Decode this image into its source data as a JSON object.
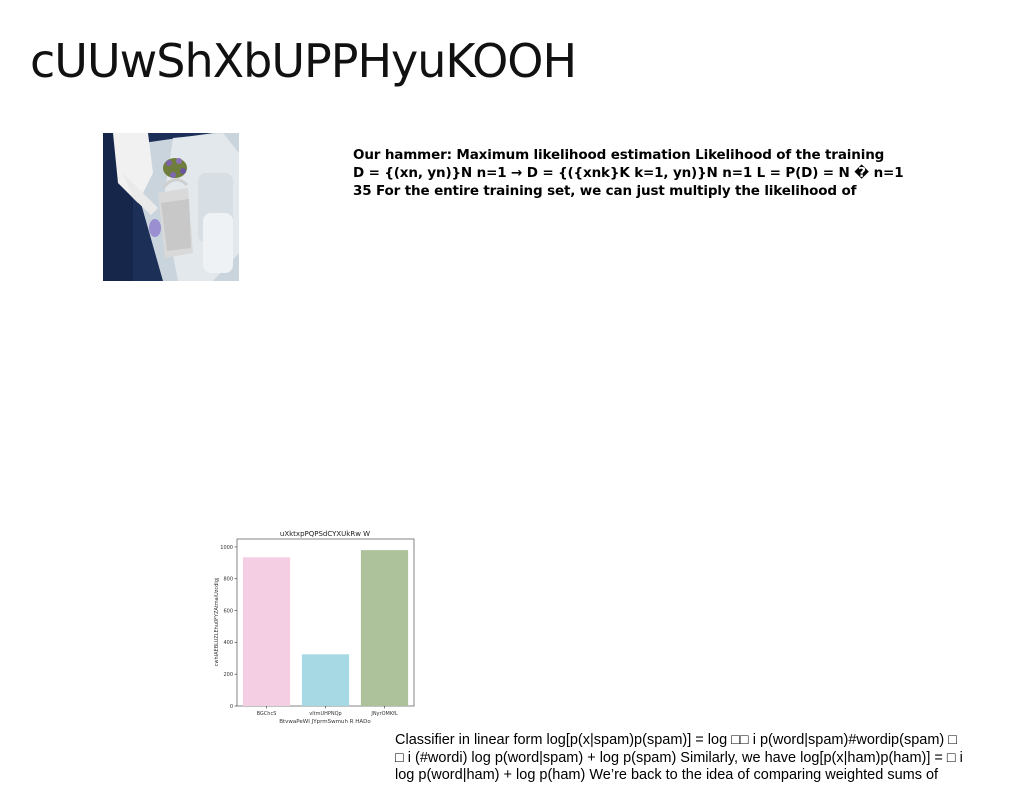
{
  "slide": {
    "title": "cUUwShXbUPPHyuKOOH",
    "bold_lines": [
      "Our hammer: Maximum likelihood estimation Likelihood of the training",
      "D = {(xn, yn)}N n=1 → D = {({xnk}K k=1, yn)}N n=1 L = P(D) = N � n=1",
      "35 For the entire training set, we can just multiply the likelihood of"
    ],
    "body_lines": [
      "Classifier in linear form log[p(x|spam)p(spam)] = log □□ i p(word|spam)#wordip(spam) □",
      "□ i (#wordi) log p(word|spam) + log p(spam) Similarly, we have log[p(x|ham)p(ham)] = □ i",
      "log p(word|ham) + log p(ham) We’re back to the idea of comparing weighted sums of"
    ]
  },
  "chart_data": {
    "type": "bar",
    "title": "uXktxpPQPSdCYXUkRw W",
    "xlabel": "BtvwaPeWI JYprmSwmuh R HADo",
    "ylabel": "cwhIAEBLUZLEhu0FYZAtmaiUzcdIgj",
    "categories": [
      "BGChcS",
      "vltmUHPNQp",
      "JNyrOMKfL"
    ],
    "values": [
      935,
      325,
      980
    ],
    "ylim": [
      0,
      1050
    ],
    "yticks": [
      0,
      200,
      400,
      600,
      800,
      1000
    ],
    "colors": [
      "#f4cfe4",
      "#a6d9e4",
      "#adc29b"
    ],
    "grid": false
  }
}
